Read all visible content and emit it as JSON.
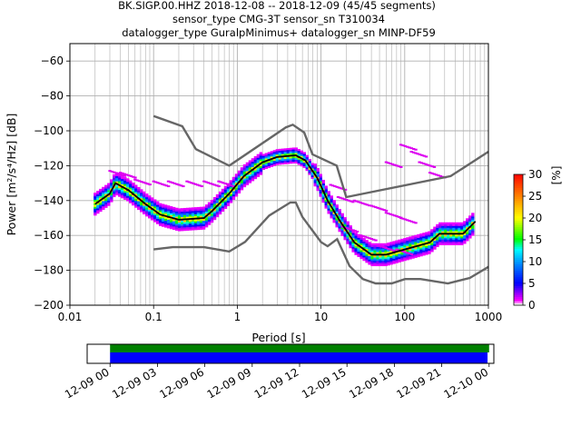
{
  "title": {
    "line1": "BK.SIGP.00.HHZ   2018-12-08 -- 2018-12-09  (45/45 segments)",
    "line2": "sensor_type CMG-3T sensor_sn T310034",
    "line3": "datalogger_type GuralpMinimus+ datalogger_sn MINP-DF59"
  },
  "chart_data": [
    {
      "type": "heatmap",
      "description_free": true,
      "xlabel": "Period [s]",
      "ylabel": "Power [m²/s⁴/Hz] [dB]",
      "x_scale": "log",
      "xlim": [
        0.01,
        1000
      ],
      "ylim": [
        -200,
        -50
      ],
      "x_ticks": [
        {
          "value": 0.01,
          "label": "0.01"
        },
        {
          "value": 0.1,
          "label": "0.1"
        },
        {
          "value": 1,
          "label": "1"
        },
        {
          "value": 10,
          "label": "10"
        },
        {
          "value": 100,
          "label": "100"
        },
        {
          "value": 1000,
          "label": "1000"
        }
      ],
      "y_ticks": [
        -60,
        -80,
        -100,
        -120,
        -140,
        -160,
        -180,
        -200
      ],
      "grid": true,
      "colorbar": {
        "label": "[%]",
        "min": 0,
        "max": 30,
        "ticks": [
          0,
          5,
          10,
          15,
          20,
          25,
          30
        ]
      },
      "noise_models": [
        {
          "role": "high",
          "points": [
            [
              0.1,
              -91.5
            ],
            [
              0.22,
              -97.4
            ],
            [
              0.32,
              -110.5
            ],
            [
              0.8,
              -120
            ],
            [
              3.8,
              -98
            ],
            [
              4.6,
              -96.5
            ],
            [
              6.3,
              -101
            ],
            [
              7.9,
              -113.5
            ],
            [
              15.4,
              -120
            ],
            [
              20,
              -138
            ],
            [
              354,
              -126
            ],
            [
              1000,
              -112
            ]
          ]
        },
        {
          "role": "low",
          "points": [
            [
              0.1,
              -168
            ],
            [
              0.17,
              -166.7
            ],
            [
              0.4,
              -166.7
            ],
            [
              0.8,
              -169.2
            ],
            [
              1.24,
              -163.7
            ],
            [
              2.4,
              -148.6
            ],
            [
              4.3,
              -141.1
            ],
            [
              5,
              -141.1
            ],
            [
              6,
              -149.4
            ],
            [
              10,
              -163.8
            ],
            [
              12,
              -166.2
            ],
            [
              15.6,
              -162.1
            ],
            [
              21.9,
              -177.5
            ],
            [
              31.6,
              -185
            ],
            [
              45,
              -187.5
            ],
            [
              70,
              -187.5
            ],
            [
              101,
              -185
            ],
            [
              154,
              -185
            ],
            [
              328,
              -187.5
            ],
            [
              600,
              -184.4
            ],
            [
              1000,
              -178
            ]
          ]
        }
      ],
      "mean_curve": [
        [
          0.02,
          -142
        ],
        [
          0.03,
          -136
        ],
        [
          0.035,
          -130
        ],
        [
          0.05,
          -134
        ],
        [
          0.08,
          -142
        ],
        [
          0.12,
          -148
        ],
        [
          0.2,
          -151
        ],
        [
          0.4,
          -150
        ],
        [
          0.5,
          -146
        ],
        [
          0.8,
          -136
        ],
        [
          1.2,
          -126
        ],
        [
          2,
          -118
        ],
        [
          3,
          -115
        ],
        [
          5,
          -114
        ],
        [
          6.5,
          -117
        ],
        [
          9,
          -127
        ],
        [
          12,
          -140
        ],
        [
          17,
          -152
        ],
        [
          25,
          -164
        ],
        [
          40,
          -171
        ],
        [
          60,
          -171
        ],
        [
          100,
          -168
        ],
        [
          200,
          -164
        ],
        [
          260,
          -159
        ],
        [
          500,
          -159
        ],
        [
          700,
          -152
        ]
      ]
    },
    {
      "type": "timeline",
      "x_ticks": [
        "12-09 00",
        "12-09 03",
        "12-09 06",
        "12-09 09",
        "12-09 12",
        "12-09 15",
        "12-09 18",
        "12-09 21",
        "12-10 00"
      ],
      "xlim_hours": [
        -1.45,
        24.3
      ],
      "bars": [
        {
          "color": "#008000",
          "start_hour": 0,
          "end_hour": 24
        },
        {
          "color": "#0000ff",
          "start_hour": 0,
          "end_hour": 23.9
        }
      ]
    }
  ],
  "styles": {
    "noise_model_color": "#666666",
    "mean_color": "#000000",
    "grid_color": "#b0b0b0"
  }
}
